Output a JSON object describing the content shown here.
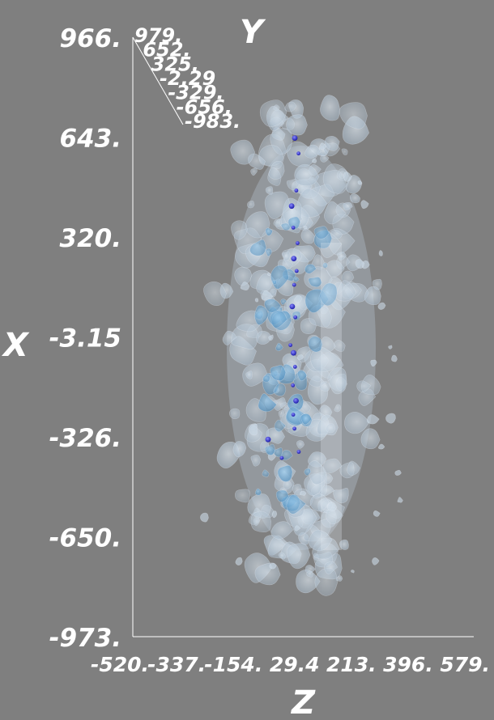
{
  "chart_data": {
    "type": "scatter",
    "subtype": "3d-volume-isosurface",
    "title": "",
    "axes": {
      "x": {
        "label": "X",
        "ticks": [
          "966.",
          "643.",
          "320.",
          "-3.15",
          "-326.",
          "-650.",
          "-973."
        ],
        "range": [
          -973,
          966
        ]
      },
      "z": {
        "label": "Z",
        "ticks": [
          "-520.",
          "-337.",
          "-154.",
          "29.4",
          "213.",
          "396.",
          "579."
        ],
        "range": [
          -520,
          579
        ]
      },
      "y": {
        "label": "Y",
        "ticks": [
          "979.",
          "652.",
          "325.",
          "-2.29",
          "-329.",
          "-656.",
          "-983."
        ],
        "range": [
          -983,
          979
        ]
      }
    },
    "background": "#7f7f7f",
    "axis_color": "#ffffff",
    "surface_colors": {
      "outer": "#c6d6e6",
      "inner": "#7eb4dc",
      "points": "#2a2ad6"
    },
    "points": [
      {
        "x": 640,
        "z": 2
      },
      {
        "x": 590,
        "z": 14
      },
      {
        "x": 470,
        "z": 7
      },
      {
        "x": 420,
        "z": -8
      },
      {
        "x": 350,
        "z": -3
      },
      {
        "x": 300,
        "z": 11
      },
      {
        "x": 250,
        "z": -1
      },
      {
        "x": 210,
        "z": 8
      },
      {
        "x": 165,
        "z": 0
      },
      {
        "x": 95,
        "z": -6
      },
      {
        "x": 60,
        "z": 4
      },
      {
        "x": -30,
        "z": -12
      },
      {
        "x": -55,
        "z": -2
      },
      {
        "x": -100,
        "z": 3
      },
      {
        "x": -160,
        "z": -4
      },
      {
        "x": -210,
        "z": 6
      },
      {
        "x": -255,
        "z": -3
      },
      {
        "x": -300,
        "z": 1
      },
      {
        "x": -335,
        "z": -84
      },
      {
        "x": -375,
        "z": 15
      },
      {
        "x": -395,
        "z": -40
      }
    ]
  }
}
